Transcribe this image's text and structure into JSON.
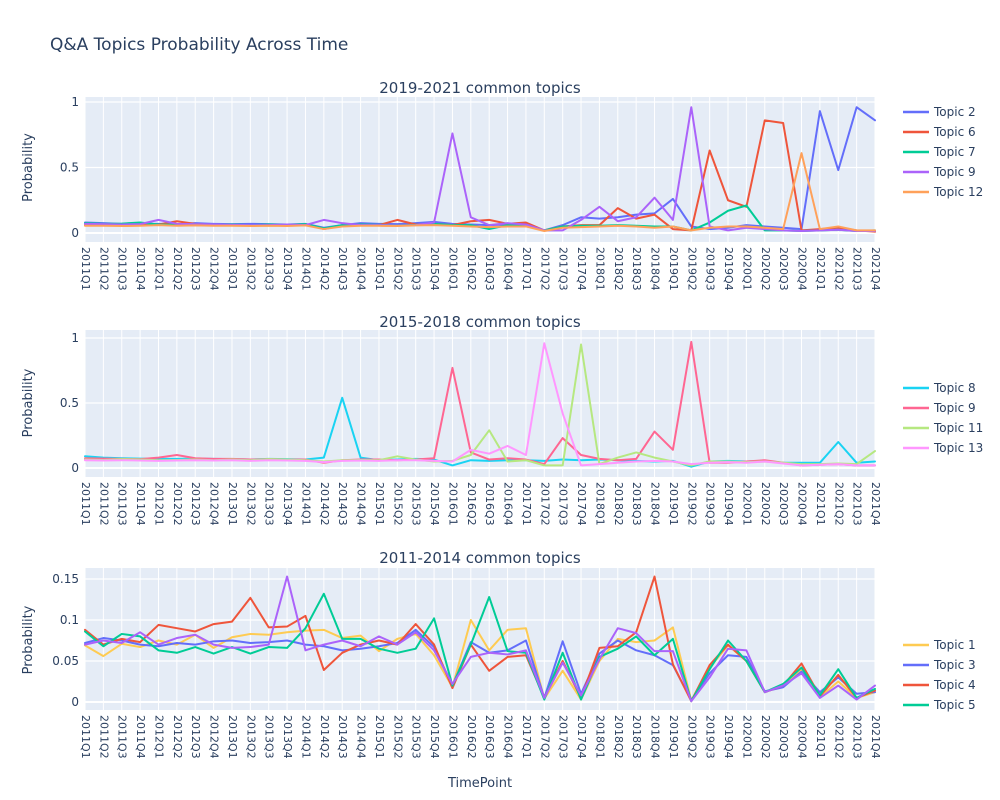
{
  "title": "Q&A Topics Probability Across Time",
  "xlabel": "TimePoint",
  "ylabel": "Probability",
  "plot_bgcolor": "#E5ECF6",
  "grid_color": "#FFFFFF",
  "font_color": "#2a3f5f",
  "legend_position": "right",
  "timepoints": [
    "2011Q1",
    "2011Q2",
    "2011Q3",
    "2011Q4",
    "2012Q1",
    "2012Q2",
    "2012Q3",
    "2012Q4",
    "2013Q1",
    "2013Q2",
    "2013Q3",
    "2013Q4",
    "2014Q1",
    "2014Q2",
    "2014Q3",
    "2014Q4",
    "2015Q1",
    "2015Q2",
    "2015Q3",
    "2015Q4",
    "2016Q1",
    "2016Q2",
    "2016Q3",
    "2016Q4",
    "2017Q1",
    "2017Q2",
    "2017Q3",
    "2017Q4",
    "2018Q1",
    "2018Q2",
    "2018Q3",
    "2018Q4",
    "2019Q1",
    "2019Q2",
    "2019Q3",
    "2019Q4",
    "2020Q1",
    "2020Q2",
    "2020Q3",
    "2020Q4",
    "2021Q1",
    "2021Q2",
    "2021Q3",
    "2021Q4"
  ],
  "chart_data": [
    {
      "type": "line",
      "title": "2019-2021 common topics",
      "ylabel": "Probability",
      "ylim": [
        0,
        1
      ],
      "yticks": [
        0,
        0.5,
        1
      ],
      "grid": true,
      "series": [
        {
          "name": "Topic 2",
          "color": "#636EFA",
          "in_legend": true,
          "values": [
            0.08,
            0.075,
            0.07,
            0.07,
            0.07,
            0.068,
            0.075,
            0.07,
            0.068,
            0.07,
            0.068,
            0.065,
            0.07,
            0.04,
            0.06,
            0.075,
            0.07,
            0.068,
            0.075,
            0.085,
            0.07,
            0.065,
            0.06,
            0.065,
            0.07,
            0.02,
            0.06,
            0.12,
            0.11,
            0.12,
            0.14,
            0.15,
            0.26,
            0.05,
            0.03,
            0.04,
            0.06,
            0.05,
            0.04,
            0.03,
            0.93,
            0.48,
            0.96,
            0.86
          ]
        },
        {
          "name": "Topic 6",
          "color": "#EF553B",
          "in_legend": true,
          "values": [
            0.06,
            0.06,
            0.058,
            0.06,
            0.065,
            0.09,
            0.07,
            0.06,
            0.06,
            0.058,
            0.06,
            0.058,
            0.065,
            0.03,
            0.055,
            0.06,
            0.06,
            0.1,
            0.065,
            0.07,
            0.06,
            0.09,
            0.1,
            0.07,
            0.08,
            0.02,
            0.05,
            0.06,
            0.06,
            0.19,
            0.11,
            0.14,
            0.03,
            0.02,
            0.63,
            0.25,
            0.2,
            0.86,
            0.84,
            0.02,
            0.03,
            0.04,
            0.02,
            0.01
          ]
        },
        {
          "name": "Topic 7",
          "color": "#00CC96",
          "in_legend": true,
          "values": [
            0.075,
            0.07,
            0.072,
            0.08,
            0.065,
            0.062,
            0.068,
            0.06,
            0.065,
            0.06,
            0.065,
            0.062,
            0.068,
            0.035,
            0.06,
            0.065,
            0.062,
            0.06,
            0.062,
            0.07,
            0.06,
            0.06,
            0.03,
            0.06,
            0.06,
            0.02,
            0.05,
            0.055,
            0.055,
            0.06,
            0.055,
            0.05,
            0.05,
            0.02,
            0.08,
            0.17,
            0.21,
            0.02,
            0.02,
            0.015,
            0.02,
            0.025,
            0.015,
            0.02
          ]
        },
        {
          "name": "Topic 9",
          "color": "#AB63FA",
          "in_legend": true,
          "values": [
            0.07,
            0.068,
            0.065,
            0.068,
            0.1,
            0.07,
            0.068,
            0.065,
            0.062,
            0.06,
            0.06,
            0.065,
            0.06,
            0.1,
            0.075,
            0.06,
            0.06,
            0.058,
            0.06,
            0.08,
            0.76,
            0.12,
            0.06,
            0.075,
            0.065,
            0.02,
            0.02,
            0.1,
            0.2,
            0.09,
            0.12,
            0.27,
            0.1,
            0.96,
            0.05,
            0.02,
            0.04,
            0.03,
            0.02,
            0.015,
            0.02,
            0.025,
            0.015,
            0.015
          ]
        },
        {
          "name": "Topic 12",
          "color": "#FFA15A",
          "in_legend": true,
          "values": [
            0.055,
            0.055,
            0.053,
            0.055,
            0.06,
            0.055,
            0.058,
            0.055,
            0.055,
            0.053,
            0.055,
            0.053,
            0.058,
            0.03,
            0.05,
            0.055,
            0.055,
            0.053,
            0.058,
            0.06,
            0.055,
            0.05,
            0.045,
            0.05,
            0.05,
            0.015,
            0.04,
            0.045,
            0.05,
            0.055,
            0.05,
            0.04,
            0.05,
            0.02,
            0.04,
            0.05,
            0.05,
            0.04,
            0.03,
            0.61,
            0.03,
            0.05,
            0.02,
            0.02
          ]
        }
      ]
    },
    {
      "type": "line",
      "title": "2015-2018 common topics",
      "ylabel": "Probability",
      "ylim": [
        0,
        1
      ],
      "yticks": [
        0,
        0.5,
        1
      ],
      "grid": true,
      "series": [
        {
          "name": "Topic 8",
          "color": "#19D3F3",
          "in_legend": true,
          "values": [
            0.09,
            0.08,
            0.075,
            0.072,
            0.07,
            0.07,
            0.072,
            0.07,
            0.068,
            0.065,
            0.07,
            0.068,
            0.065,
            0.08,
            0.54,
            0.08,
            0.06,
            0.065,
            0.07,
            0.065,
            0.02,
            0.06,
            0.055,
            0.06,
            0.06,
            0.055,
            0.065,
            0.06,
            0.065,
            0.06,
            0.055,
            0.05,
            0.055,
            0.01,
            0.05,
            0.055,
            0.05,
            0.055,
            0.04,
            0.04,
            0.04,
            0.2,
            0.04,
            0.05
          ]
        },
        {
          "name": "Topic 9",
          "color": "#FF6692",
          "in_legend": true,
          "values": [
            0.075,
            0.072,
            0.07,
            0.068,
            0.08,
            0.1,
            0.075,
            0.07,
            0.07,
            0.065,
            0.068,
            0.065,
            0.065,
            0.04,
            0.06,
            0.065,
            0.065,
            0.06,
            0.065,
            0.075,
            0.77,
            0.12,
            0.065,
            0.075,
            0.065,
            0.03,
            0.23,
            0.1,
            0.07,
            0.06,
            0.07,
            0.28,
            0.14,
            0.97,
            0.04,
            0.04,
            0.05,
            0.06,
            0.04,
            0.02,
            0.025,
            0.03,
            0.02,
            0.02
          ]
        },
        {
          "name": "Topic 11",
          "color": "#B6E880",
          "in_legend": true,
          "values": [
            0.065,
            0.062,
            0.068,
            0.065,
            0.06,
            0.062,
            0.065,
            0.06,
            0.065,
            0.06,
            0.068,
            0.065,
            0.06,
            0.05,
            0.06,
            0.062,
            0.06,
            0.09,
            0.065,
            0.05,
            0.055,
            0.1,
            0.29,
            0.05,
            0.06,
            0.02,
            0.02,
            0.95,
            0.03,
            0.08,
            0.12,
            0.08,
            0.05,
            0.02,
            0.05,
            0.05,
            0.045,
            0.05,
            0.04,
            0.03,
            0.03,
            0.035,
            0.03,
            0.13
          ]
        },
        {
          "name": "Topic 13",
          "color": "#FF97FF",
          "in_legend": true,
          "values": [
            0.06,
            0.058,
            0.06,
            0.058,
            0.055,
            0.058,
            0.06,
            0.058,
            0.06,
            0.055,
            0.06,
            0.058,
            0.055,
            0.045,
            0.055,
            0.058,
            0.055,
            0.06,
            0.06,
            0.055,
            0.05,
            0.14,
            0.11,
            0.17,
            0.1,
            0.96,
            0.42,
            0.02,
            0.03,
            0.04,
            0.05,
            0.055,
            0.05,
            0.03,
            0.04,
            0.045,
            0.04,
            0.05,
            0.035,
            0.02,
            0.025,
            0.03,
            0.02,
            0.02
          ]
        }
      ]
    },
    {
      "type": "line",
      "title": "2011-2014 common topics",
      "ylabel": "Probability",
      "ylim": [
        0,
        0.16
      ],
      "yticks": [
        0,
        0.05,
        0.1,
        0.15
      ],
      "grid": true,
      "series": [
        {
          "name": "Topic 1",
          "color": "#FECB52",
          "in_legend": true,
          "values": [
            0.069,
            0.056,
            0.071,
            0.067,
            0.075,
            0.07,
            0.082,
            0.066,
            0.079,
            0.083,
            0.082,
            0.085,
            0.087,
            0.088,
            0.078,
            0.081,
            0.062,
            0.077,
            0.083,
            0.057,
            0.018,
            0.1,
            0.063,
            0.088,
            0.09,
            0.004,
            0.038,
            0.003,
            0.05,
            0.077,
            0.073,
            0.075,
            0.091,
            0.002,
            0.042,
            0.069,
            0.05,
            0.012,
            0.02,
            0.04,
            0.006,
            0.025,
            0.005,
            0.012
          ]
        },
        {
          "name": "Topic 3",
          "color": "#636EFA",
          "in_legend": true,
          "values": [
            0.072,
            0.078,
            0.075,
            0.07,
            0.068,
            0.072,
            0.07,
            0.074,
            0.075,
            0.072,
            0.073,
            0.075,
            0.07,
            0.068,
            0.063,
            0.065,
            0.068,
            0.072,
            0.088,
            0.067,
            0.02,
            0.073,
            0.06,
            0.063,
            0.075,
            0.005,
            0.074,
            0.01,
            0.059,
            0.075,
            0.063,
            0.057,
            0.045,
            0.002,
            0.035,
            0.057,
            0.055,
            0.013,
            0.018,
            0.037,
            0.012,
            0.03,
            0.01,
            0.012
          ]
        },
        {
          "name": "Topic 4",
          "color": "#EF553B",
          "in_legend": true,
          "values": [
            0.088,
            0.07,
            0.077,
            0.073,
            0.094,
            0.09,
            0.086,
            0.095,
            0.098,
            0.127,
            0.091,
            0.092,
            0.105,
            0.039,
            0.06,
            0.07,
            0.075,
            0.07,
            0.095,
            0.07,
            0.017,
            0.07,
            0.038,
            0.055,
            0.057,
            0.005,
            0.05,
            0.005,
            0.066,
            0.068,
            0.085,
            0.153,
            0.046,
            0.001,
            0.045,
            0.07,
            0.05,
            0.012,
            0.02,
            0.047,
            0.007,
            0.033,
            0.005,
            0.014
          ]
        },
        {
          "name": "Topic 5",
          "color": "#00CC96",
          "in_legend": true,
          "values": [
            0.086,
            0.068,
            0.083,
            0.08,
            0.063,
            0.06,
            0.067,
            0.059,
            0.067,
            0.059,
            0.067,
            0.066,
            0.09,
            0.132,
            0.077,
            0.077,
            0.065,
            0.06,
            0.065,
            0.102,
            0.02,
            0.07,
            0.128,
            0.062,
            0.06,
            0.003,
            0.06,
            0.003,
            0.055,
            0.065,
            0.08,
            0.057,
            0.077,
            0.001,
            0.04,
            0.075,
            0.05,
            0.012,
            0.022,
            0.042,
            0.008,
            0.04,
            0.005,
            0.016
          ]
        },
        {
          "name": "",
          "color": "#AB63FA",
          "in_legend": false,
          "values": [
            0.07,
            0.075,
            0.072,
            0.085,
            0.07,
            0.078,
            0.082,
            0.07,
            0.066,
            0.067,
            0.07,
            0.153,
            0.063,
            0.07,
            0.075,
            0.068,
            0.08,
            0.07,
            0.085,
            0.063,
            0.022,
            0.055,
            0.06,
            0.058,
            0.063,
            0.005,
            0.048,
            0.008,
            0.052,
            0.09,
            0.084,
            0.062,
            0.062,
            0.001,
            0.03,
            0.065,
            0.063,
            0.012,
            0.02,
            0.035,
            0.005,
            0.02,
            0.003,
            0.02
          ]
        }
      ]
    }
  ]
}
